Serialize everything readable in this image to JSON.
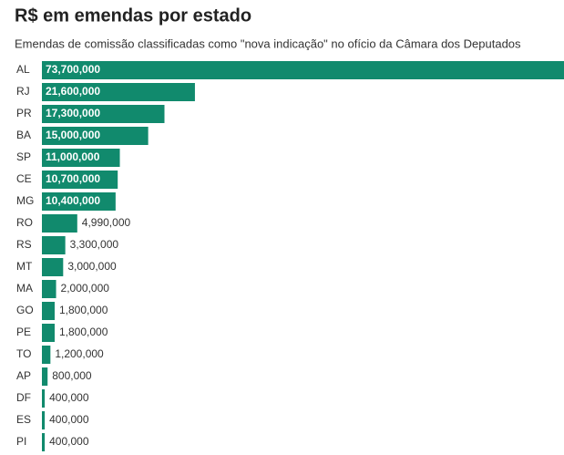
{
  "chart_data": {
    "type": "bar",
    "orientation": "horizontal",
    "title": "R$ em emendas por estado",
    "subtitle": "Emendas de comissão classificadas como \"nova indicação\" no ofício da Câmara dos Deputados",
    "categories": [
      "AL",
      "RJ",
      "PR",
      "BA",
      "SP",
      "CE",
      "MG",
      "RO",
      "RS",
      "MT",
      "MA",
      "GO",
      "PE",
      "TO",
      "AP",
      "DF",
      "ES",
      "PI"
    ],
    "values": [
      73700000,
      21600000,
      17300000,
      15000000,
      11000000,
      10700000,
      10400000,
      4990000,
      3300000,
      3000000,
      2000000,
      1800000,
      1800000,
      1200000,
      800000,
      400000,
      400000,
      400000
    ],
    "value_labels": [
      "73,700,000",
      "21,600,000",
      "17,300,000",
      "15,000,000",
      "11,000,000",
      "10,700,000",
      "10,400,000",
      "4,990,000",
      "3,300,000",
      "3,000,000",
      "2,000,000",
      "1,800,000",
      "1,800,000",
      "1,200,000",
      "800,000",
      "400,000",
      "400,000",
      "400,000"
    ],
    "color": "#118a6d"
  }
}
